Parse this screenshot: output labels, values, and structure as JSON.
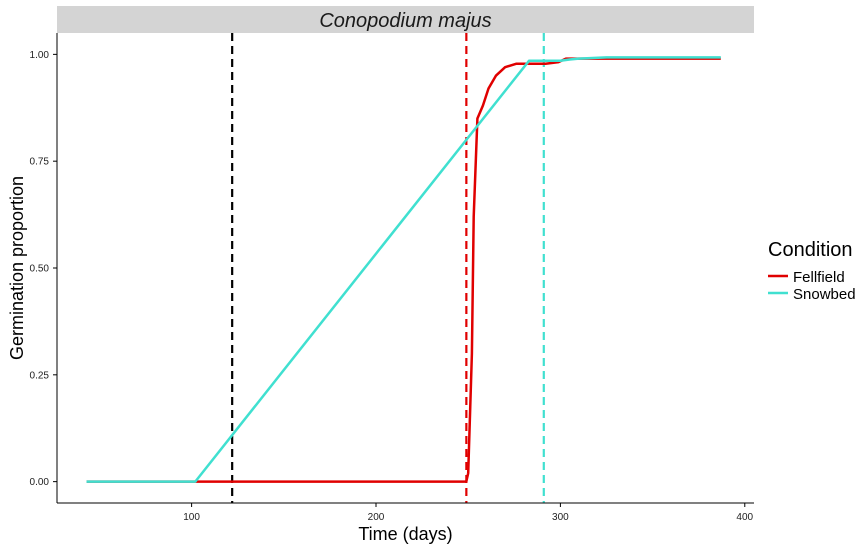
{
  "chart_data": {
    "type": "line",
    "title": "Conopodium majus",
    "xlabel": "Time (days)",
    "ylabel": "Germination proportion",
    "xlim": [
      27,
      405
    ],
    "ylim": [
      -0.05,
      1.05
    ],
    "x_ticks": [
      100,
      200,
      300,
      400
    ],
    "y_ticks": [
      0.0,
      0.25,
      0.5,
      0.75,
      1.0
    ],
    "y_tick_labels": [
      "0.00",
      "0.25",
      "0.50",
      "0.75",
      "1.00"
    ],
    "legend": {
      "title": "Condition",
      "position": "right",
      "items": [
        "Fellfield",
        "Snowbed"
      ]
    },
    "grid": false,
    "series": [
      {
        "name": "Fellfield",
        "color": "#e00000",
        "x": [
          43,
          101,
          249,
          250,
          252,
          253,
          255,
          258,
          261,
          265,
          270,
          276,
          282,
          292,
          299,
          303,
          312,
          325,
          387
        ],
        "y": [
          0,
          0,
          0,
          0.02,
          0.3,
          0.62,
          0.85,
          0.88,
          0.92,
          0.95,
          0.97,
          0.978,
          0.978,
          0.978,
          0.982,
          0.99,
          0.99,
          0.99,
          0.99
        ]
      },
      {
        "name": "Snowbed",
        "color": "#40e0d0",
        "x": [
          43,
          102,
          283,
          294,
          300,
          305,
          310,
          325,
          387
        ],
        "y": [
          0,
          0,
          0.985,
          0.985,
          0.985,
          0.988,
          0.99,
          0.993,
          0.993
        ]
      }
    ],
    "vlines": [
      {
        "x": 122,
        "color": "#000000",
        "style": "dashed"
      },
      {
        "x": 249,
        "color": "#e00000",
        "style": "dashed"
      },
      {
        "x": 291,
        "color": "#40e0d0",
        "style": "dashed"
      }
    ]
  }
}
